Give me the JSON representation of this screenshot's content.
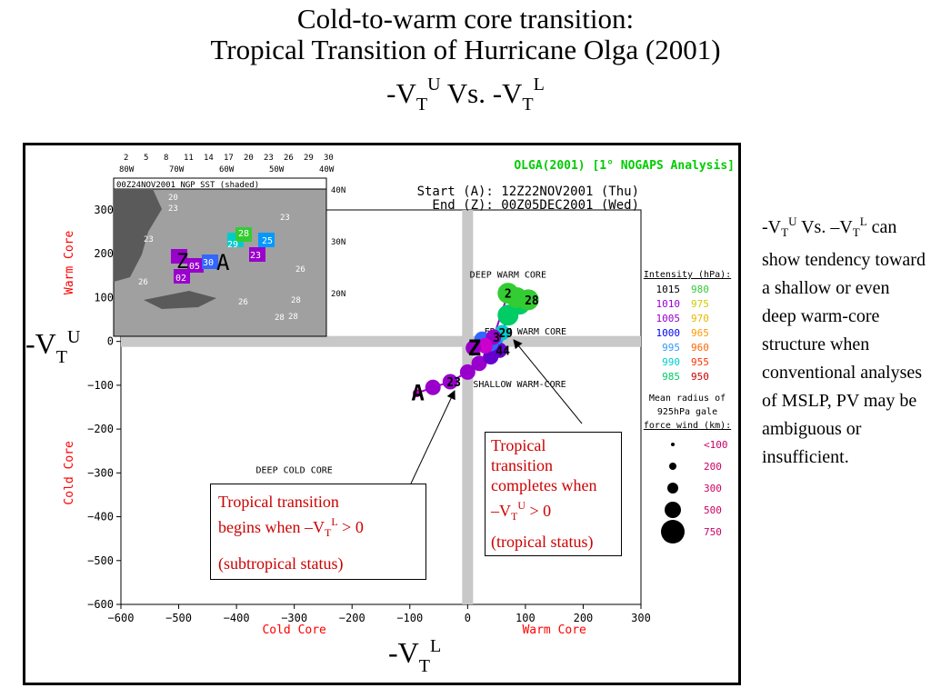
{
  "title_line1": "Cold-to-warm core transition:",
  "title_line2": "Tropical Transition of Hurricane Olga (2001)",
  "title_line3": {
    "a": "-V",
    "a_sub": "T",
    "a_sup": "U",
    "mid": " Vs. -V",
    "b_sub": "T",
    "b_sup": "L"
  },
  "side_text": {
    "p1": "-V",
    "p1_sub": "T",
    "p1_sup": "U",
    "p2": " Vs. –V",
    "p2_sub": "T",
    "p2_sup": "L",
    "body": "can show tendency toward a shallow or even deep warm-core structure when conventional analyses of MSLP, PV may be ambiguous or insufficient."
  },
  "ylabel_big": {
    "a": "-V",
    "sub": "T",
    "sup": "U"
  },
  "xlabel_big": {
    "a": "-V",
    "sub": "T",
    "sup": "L"
  },
  "callout_begin": {
    "l1": "Tropical transition",
    "l2a": "begins when –V",
    "l2_sub": "T",
    "l2_sup": "L",
    "l2b": " > 0",
    "l3": "(subtropical status)"
  },
  "callout_complete": {
    "l1": "Tropical",
    "l2": "transition",
    "l3": "completes when",
    "l4a": "–V",
    "l4_sub": "T",
    "l4_sup": "U",
    "l4b": " > 0",
    "l5": "(tropical status)"
  },
  "chart_data": {
    "type": "scatter",
    "title": "OLGA(2001) [1° NOGAPS Analysis]",
    "start_label": "Start (A): 12Z22NOV2001 (Thu)",
    "end_label": "End  (Z): 00Z05DEC2001 (Wed)",
    "xlabel_left": "Cold Core",
    "xlabel_right": "Warm Core",
    "ylabel_top": "Warm Core",
    "ylabel_bottom": "Cold Core",
    "xlim": [
      -600,
      300
    ],
    "ylim": [
      -600,
      300
    ],
    "xticks": [
      "−600",
      "−500",
      "−400",
      "−300",
      "−200",
      "−100",
      "0",
      "100",
      "200",
      "300"
    ],
    "xtick_values": [
      -600,
      -500,
      -400,
      -300,
      -200,
      -100,
      0,
      100,
      200,
      300
    ],
    "yticks": [
      "−600",
      "−500",
      "−400",
      "−300",
      "−200",
      "−100",
      "0",
      "100",
      "200",
      "300"
    ],
    "ytick_values": [
      -600,
      -500,
      -400,
      -300,
      -200,
      -100,
      0,
      100,
      200,
      300
    ],
    "quadrants": {
      "deep_warm": "DEEP WARM CORE",
      "moderate_warm": "ERATE WARM CORE",
      "shallow_warm": "SHALLOW WARM-CORE",
      "deep_cold": "DEEP COLD CORE"
    },
    "track": [
      {
        "x": -88,
        "y": -118,
        "label": "A",
        "color": "#cc00cc"
      },
      {
        "x": -60,
        "y": -105,
        "color": "#9900cc"
      },
      {
        "x": -30,
        "y": -92,
        "label": "23",
        "color": "#9900cc"
      },
      {
        "x": 0,
        "y": -70,
        "color": "#9900cc"
      },
      {
        "x": 20,
        "y": -50,
        "color": "#9900cc"
      },
      {
        "x": 40,
        "y": -35,
        "color": "#6600cc"
      },
      {
        "x": 55,
        "y": -20,
        "label": "44",
        "color": "#6600cc"
      },
      {
        "x": 40,
        "y": -5,
        "color": "#3366ff"
      },
      {
        "x": 25,
        "y": 5,
        "color": "#3366ff"
      },
      {
        "x": 50,
        "y": 10,
        "label": "3",
        "color": "#0099ff"
      },
      {
        "x": 60,
        "y": 20,
        "label": "29",
        "color": "#00cccc"
      },
      {
        "x": 70,
        "y": 60,
        "color": "#00cc66"
      },
      {
        "x": 90,
        "y": 85,
        "color": "#00cc66"
      },
      {
        "x": 105,
        "y": 95,
        "label": "28",
        "color": "#33cc33"
      },
      {
        "x": 85,
        "y": 100,
        "color": "#33cc33"
      },
      {
        "x": 70,
        "y": 110,
        "label": "2",
        "color": "#33cc33"
      },
      {
        "x": 45,
        "y": 10,
        "color": "#9900cc"
      },
      {
        "x": 30,
        "y": -10,
        "color": "#cc00cc"
      },
      {
        "x": 10,
        "y": -15,
        "label": "Z",
        "color": "#9900cc"
      }
    ],
    "intensity_legend": {
      "title": "Intensity (hPa):",
      "rows": [
        [
          "1015",
          "980"
        ],
        [
          "1010",
          "975"
        ],
        [
          "1005",
          "970"
        ],
        [
          "1000",
          "965"
        ],
        [
          "995",
          "960"
        ],
        [
          "990",
          "955"
        ],
        [
          "985",
          "950"
        ]
      ],
      "colors_left": [
        "#000000",
        "#9900cc",
        "#9900cc",
        "#0000ff",
        "#3399ff",
        "#00cccc",
        "#00cc66"
      ],
      "colors_right": [
        "#33cc33",
        "#cccc00",
        "#e6b800",
        "#ff9900",
        "#ff6600",
        "#ff3300",
        "#cc0000"
      ]
    },
    "radius_legend": {
      "title1": "Mean radius of",
      "title2": "925hPa gale",
      "title3": "force wind (km):",
      "items": [
        "<100",
        "200",
        "300",
        "500",
        "750"
      ]
    },
    "inset": {
      "label": "00Z24NOV2001 NGP SST (shaded)",
      "lon_labels": [
        "80W",
        "70W",
        "60W",
        "50W",
        "40W"
      ],
      "lat_labels": [
        "40N",
        "30N",
        "20N"
      ],
      "scale_labels": [
        "2",
        "5",
        "8",
        "11",
        "14",
        "17",
        "20",
        "23",
        "26",
        "29",
        "30"
      ],
      "sst_labels": [
        "20",
        "23",
        "23",
        "26",
        "23",
        "26",
        "26",
        "26",
        "28",
        "28",
        "28",
        "23"
      ],
      "track_labels": [
        "Z",
        "A",
        "30",
        "25",
        "28",
        "29",
        "23",
        "02",
        "05"
      ]
    }
  }
}
